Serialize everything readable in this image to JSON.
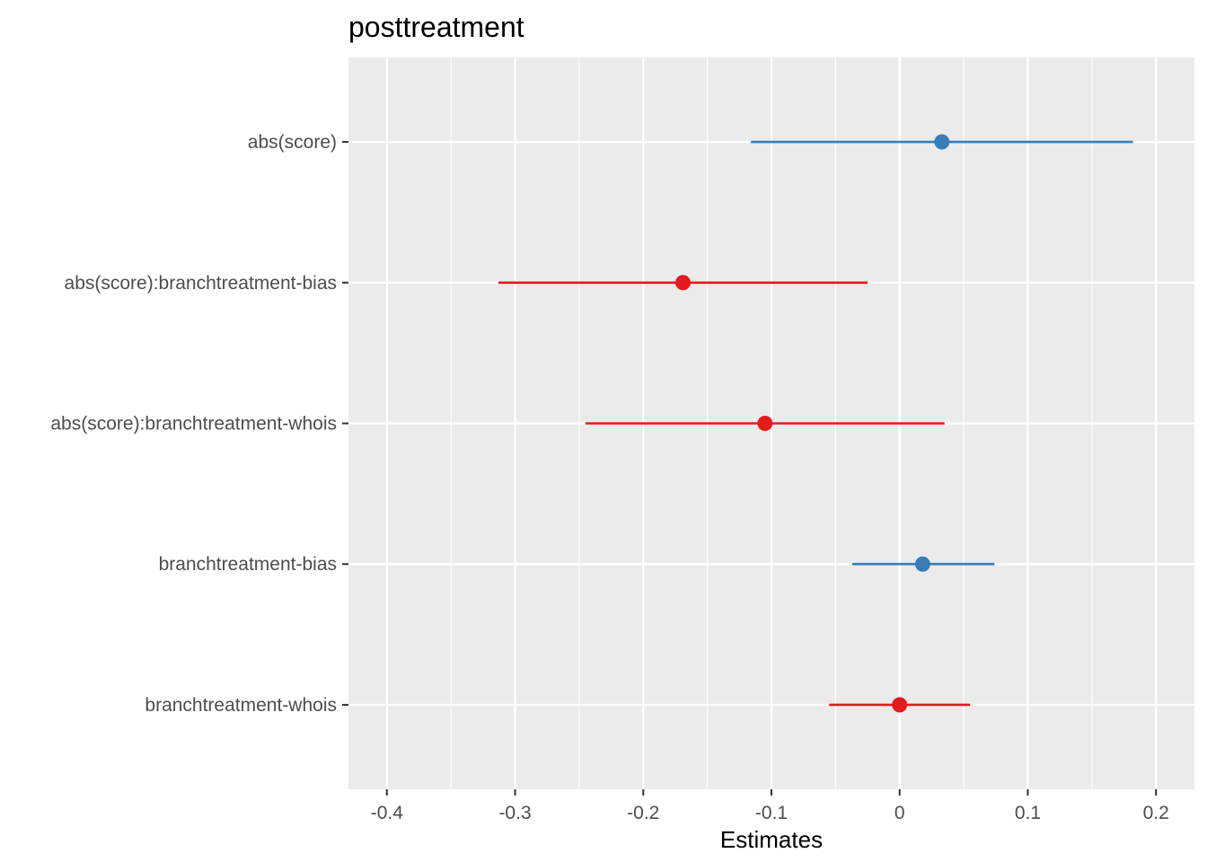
{
  "chart_data": {
    "type": "forest",
    "title": "posttreatment",
    "xlabel": "Estimates",
    "ylabel": "",
    "xlim": [
      -0.43,
      0.23
    ],
    "x_ticks": [
      -0.4,
      -0.3,
      -0.2,
      -0.1,
      0,
      0.1,
      0.2
    ],
    "x_tick_labels": [
      "-0.4",
      "-0.3",
      "-0.2",
      "-0.1",
      "0",
      "0.1",
      "0.2"
    ],
    "grid": true,
    "zero_line": 0,
    "colors": {
      "positive": "#377eb8",
      "negative": "#e41a1c",
      "panel": "#ebebeb",
      "grid": "#ffffff"
    },
    "terms": [
      {
        "label": "abs(score)",
        "estimate": 0.033,
        "conf_low": -0.116,
        "conf_high": 0.182,
        "sign": "positive"
      },
      {
        "label": "abs(score):branchtreatment-bias",
        "estimate": -0.169,
        "conf_low": -0.313,
        "conf_high": -0.025,
        "sign": "negative"
      },
      {
        "label": "abs(score):branchtreatment-whois",
        "estimate": -0.105,
        "conf_low": -0.245,
        "conf_high": 0.035,
        "sign": "negative"
      },
      {
        "label": "branchtreatment-bias",
        "estimate": 0.018,
        "conf_low": -0.037,
        "conf_high": 0.074,
        "sign": "positive"
      },
      {
        "label": "branchtreatment-whois",
        "estimate": 0.0,
        "conf_low": -0.055,
        "conf_high": 0.055,
        "sign": "negative"
      }
    ]
  }
}
